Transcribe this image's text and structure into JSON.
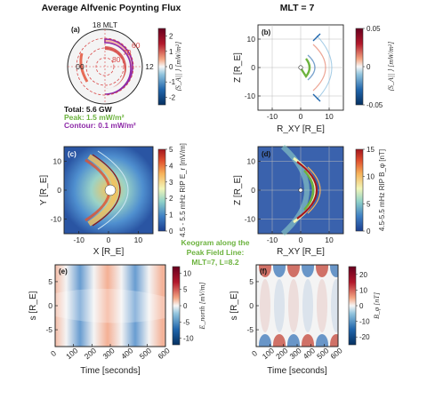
{
  "colors": {
    "red": "#b2182b",
    "blue": "#2166ac",
    "white": "#f7f7f7",
    "green": "#6db33f",
    "purple": "#8e2aa8"
  },
  "chart_data": [
    {
      "id": "a",
      "type": "polar",
      "panel_label": "(a)",
      "title": "Average Alfvenic Poynting Flux",
      "mlt_labels": [
        "18 MLT",
        "00",
        "12"
      ],
      "lat_labels": [
        "60",
        "70",
        "80"
      ],
      "colorbar": {
        "label": "⟨S_A|| ⟩ [mW/m²]",
        "ticks": [
          "2",
          "1",
          "0",
          "-1",
          "-2"
        ],
        "range": [
          -2.5,
          2.5
        ]
      },
      "annotations": {
        "total": "Total: 5.6 GW",
        "peak": "Peak: 1.5 mW/m²",
        "contour": "Contour: 0.1 mW/m²"
      }
    },
    {
      "id": "b",
      "type": "heatmap",
      "panel_label": "(b)",
      "title": "MLT = 7",
      "xlabel": "R_XY [R_E]",
      "ylabel": "Z [R_E]",
      "xticks": [
        "-10",
        "0",
        "10"
      ],
      "yticks": [
        "10",
        "0",
        "-10"
      ],
      "xlim": [
        -15,
        15
      ],
      "ylim": [
        -15,
        15
      ],
      "colorbar": {
        "label": "⟨S_A|| ⟩ [mW/m²]",
        "ticks": [
          "0.05",
          "0",
          "-0.05"
        ],
        "range": [
          -0.05,
          0.05
        ]
      }
    },
    {
      "id": "c",
      "type": "heatmap",
      "panel_label": "(c)",
      "xlabel": "X [R_E]",
      "ylabel": "Y [R_E]",
      "xticks": [
        "-10",
        "0",
        "10"
      ],
      "yticks": [
        "10",
        "0",
        "-10"
      ],
      "xlim": [
        -15,
        15
      ],
      "ylim": [
        -15,
        15
      ],
      "colorbar": {
        "label": "4.5 - 5.5 mHz RIP E_r [mV/m]",
        "ticks": [
          "5",
          "4",
          "3",
          "2",
          "1",
          "0"
        ],
        "range": [
          0,
          5
        ]
      }
    },
    {
      "id": "d",
      "type": "heatmap",
      "panel_label": "(d)",
      "xlabel": "R_XY [R_E]",
      "ylabel": "Z [R_E]",
      "xticks": [
        "-10",
        "0",
        "10"
      ],
      "yticks": [
        "10",
        "0",
        "-10"
      ],
      "xlim": [
        -15,
        15
      ],
      "ylim": [
        -15,
        15
      ],
      "colorbar": {
        "label": "4.5-5.5 mHz RIP B_φ [nT]",
        "ticks": [
          "15",
          "10",
          "5",
          "0"
        ],
        "range": [
          0,
          15
        ]
      }
    },
    {
      "id": "e",
      "type": "heatmap",
      "panel_label": "(e)",
      "xlabel": "Time [seconds]",
      "ylabel": "s [R_E]",
      "xticks": [
        "0",
        "100",
        "200",
        "300",
        "400",
        "500",
        "600"
      ],
      "yticks": [
        "5",
        "0",
        "-5"
      ],
      "xlim": [
        0,
        600
      ],
      "ylim": [
        -8.5,
        8.5
      ],
      "colorbar": {
        "label": "E_north [mV/m]",
        "ticks": [
          "10",
          "5",
          "0",
          "-5",
          "-10"
        ],
        "range": [
          -12,
          12
        ]
      }
    },
    {
      "id": "f",
      "type": "heatmap",
      "panel_label": "(f)",
      "xlabel": "Time [seconds]",
      "ylabel": "s [R_E]",
      "xticks": [
        "0",
        "100",
        "200",
        "300",
        "400",
        "500",
        "600"
      ],
      "yticks": [
        "5",
        "0",
        "-5"
      ],
      "xlim": [
        0,
        600
      ],
      "ylim": [
        -8.5,
        8.5
      ],
      "colorbar": {
        "label": "B_φ [nT]",
        "ticks": [
          "20",
          "10",
          "0",
          "-10",
          "-20"
        ],
        "range": [
          -25,
          25
        ]
      }
    }
  ],
  "keogram_title": [
    "Keogram along the",
    "Peak Field Line:",
    "MLT=7, L=8.2"
  ]
}
